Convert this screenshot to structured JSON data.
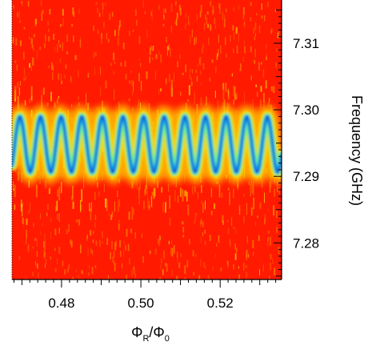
{
  "chart_data": {
    "type": "heatmap",
    "title": "",
    "xlabel": {
      "base": "Φ",
      "sub": "R",
      "separator": "/",
      "base2": "Φ",
      "sub2": "0"
    },
    "ylabel": "Frequency (GHz)",
    "xlim": [
      0.4675,
      0.5355
    ],
    "ylim": [
      7.2745,
      7.3165
    ],
    "x_ticks": [
      {
        "value": 0.48,
        "label": "0.48"
      },
      {
        "value": 0.5,
        "label": "0.50"
      },
      {
        "value": 0.52,
        "label": "0.52"
      }
    ],
    "y_ticks": [
      {
        "value": 7.28,
        "label": "7.28"
      },
      {
        "value": 7.29,
        "label": "7.29"
      },
      {
        "value": 7.3,
        "label": "7.30"
      },
      {
        "value": 7.31,
        "label": "7.31"
      }
    ],
    "colormap": [
      "#ff1a00",
      "#ff7a00",
      "#ffd000",
      "#7cff3a",
      "#00c4ff",
      "#1a28c8"
    ],
    "background_color": "#ff1a00",
    "resonance": {
      "center_ghz": 7.2948,
      "amplitude_ghz": 0.0042,
      "period_flux": 0.0052,
      "phase_flux": 0.4695
    },
    "grid": false,
    "legend": "none"
  }
}
